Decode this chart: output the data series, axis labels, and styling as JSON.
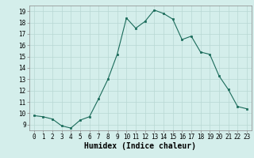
{
  "x": [
    0,
    1,
    2,
    3,
    4,
    5,
    6,
    7,
    8,
    9,
    10,
    11,
    12,
    13,
    14,
    15,
    16,
    17,
    18,
    19,
    20,
    21,
    22,
    23
  ],
  "y": [
    9.8,
    9.7,
    9.5,
    8.9,
    8.7,
    9.4,
    9.7,
    11.3,
    13.0,
    15.2,
    18.4,
    17.5,
    18.1,
    19.1,
    18.8,
    18.3,
    16.5,
    16.8,
    15.4,
    15.2,
    13.3,
    12.1,
    10.6,
    10.4
  ],
  "line_color": "#1a6b5a",
  "marker_color": "#1a6b5a",
  "bg_color": "#d4eeeb",
  "grid_color": "#b8d8d4",
  "xlabel": "Humidex (Indice chaleur)",
  "xlim": [
    -0.5,
    23.5
  ],
  "ylim": [
    8.5,
    19.5
  ],
  "yticks": [
    9,
    10,
    11,
    12,
    13,
    14,
    15,
    16,
    17,
    18,
    19
  ],
  "xticks": [
    0,
    1,
    2,
    3,
    4,
    5,
    6,
    7,
    8,
    9,
    10,
    11,
    12,
    13,
    14,
    15,
    16,
    17,
    18,
    19,
    20,
    21,
    22,
    23
  ],
  "tick_fontsize": 5.5,
  "xlabel_fontsize": 7
}
